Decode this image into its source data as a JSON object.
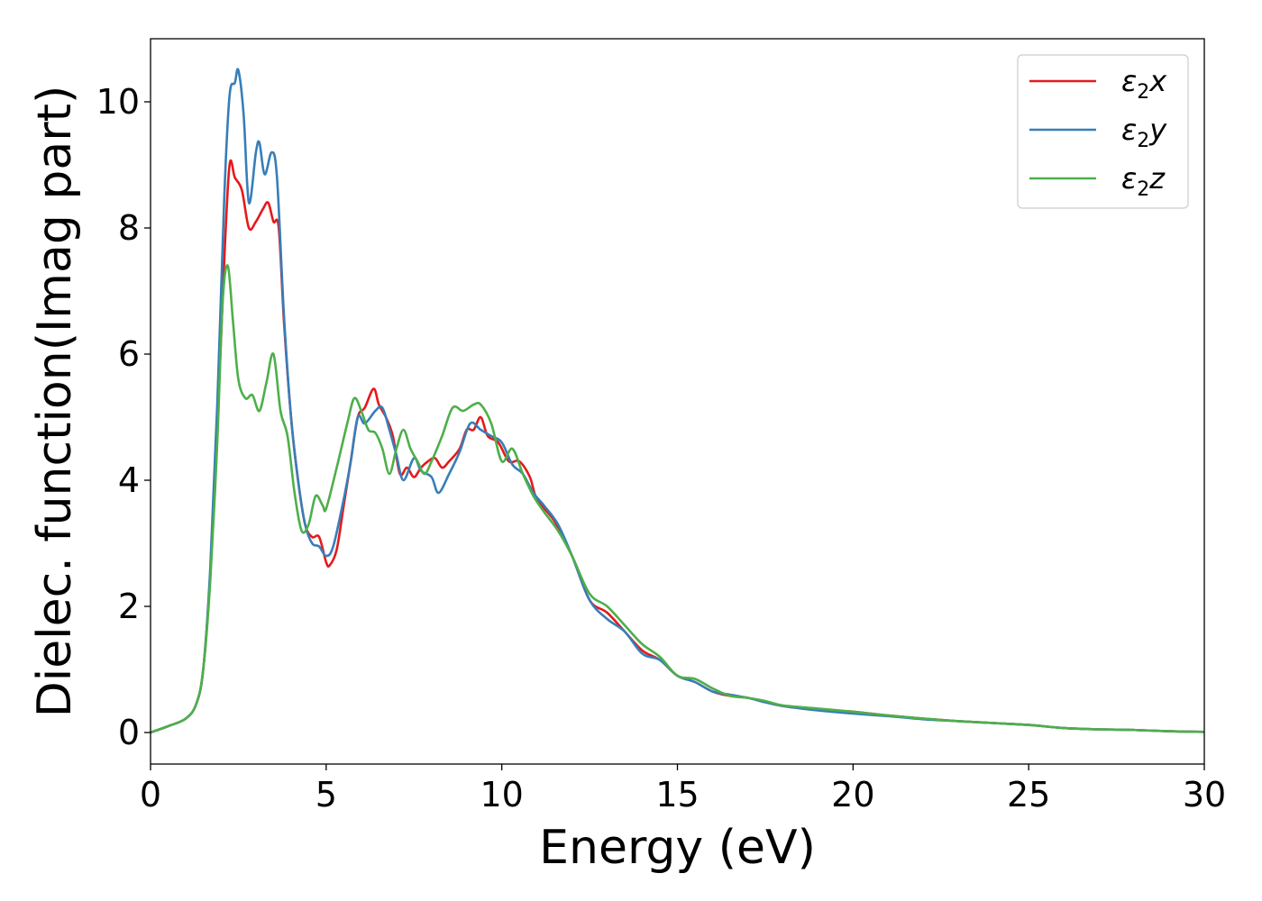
{
  "chart_data": {
    "type": "line",
    "xlabel": "Energy (eV)",
    "ylabel": "Dielec. function(Imag part)",
    "xlim": [
      0,
      30
    ],
    "ylim": [
      -0.5,
      11.0
    ],
    "xticks": [
      0,
      5,
      10,
      15,
      20,
      25,
      30
    ],
    "xtick_labels": [
      "0",
      "5",
      "10",
      "15",
      "20",
      "25",
      "30"
    ],
    "yticks": [
      0,
      2,
      4,
      6,
      8,
      10
    ],
    "ytick_labels": [
      "0",
      "2",
      "4",
      "6",
      "8",
      "10"
    ],
    "grid": false,
    "legend_position": "top-right",
    "series": [
      {
        "name": "ε₂x",
        "legend_base": "ε",
        "legend_sub": "2",
        "legend_var": "x",
        "color": "#e41a1c",
        "points": [
          [
            0,
            0
          ],
          [
            0.5,
            0.1
          ],
          [
            1.0,
            0.22
          ],
          [
            1.3,
            0.45
          ],
          [
            1.5,
            1.0
          ],
          [
            1.7,
            2.5
          ],
          [
            1.9,
            4.8
          ],
          [
            2.1,
            7.5
          ],
          [
            2.25,
            9.0
          ],
          [
            2.4,
            8.8
          ],
          [
            2.6,
            8.6
          ],
          [
            2.8,
            8.0
          ],
          [
            3.0,
            8.1
          ],
          [
            3.2,
            8.3
          ],
          [
            3.35,
            8.4
          ],
          [
            3.5,
            8.1
          ],
          [
            3.65,
            8.0
          ],
          [
            3.8,
            6.5
          ],
          [
            4.0,
            5.0
          ],
          [
            4.2,
            4.0
          ],
          [
            4.4,
            3.3
          ],
          [
            4.6,
            3.1
          ],
          [
            4.8,
            3.1
          ],
          [
            5.0,
            2.7
          ],
          [
            5.1,
            2.65
          ],
          [
            5.3,
            2.9
          ],
          [
            5.5,
            3.6
          ],
          [
            5.7,
            4.3
          ],
          [
            5.9,
            5.0
          ],
          [
            6.1,
            5.15
          ],
          [
            6.35,
            5.45
          ],
          [
            6.5,
            5.2
          ],
          [
            6.7,
            5.0
          ],
          [
            6.9,
            4.7
          ],
          [
            7.1,
            4.1
          ],
          [
            7.3,
            4.2
          ],
          [
            7.5,
            4.05
          ],
          [
            7.7,
            4.2
          ],
          [
            7.9,
            4.3
          ],
          [
            8.1,
            4.35
          ],
          [
            8.3,
            4.2
          ],
          [
            8.5,
            4.3
          ],
          [
            8.8,
            4.5
          ],
          [
            9.0,
            4.8
          ],
          [
            9.2,
            4.8
          ],
          [
            9.4,
            5.0
          ],
          [
            9.6,
            4.7
          ],
          [
            9.9,
            4.6
          ],
          [
            10.2,
            4.3
          ],
          [
            10.5,
            4.3
          ],
          [
            10.8,
            4.05
          ],
          [
            11.0,
            3.7
          ],
          [
            11.5,
            3.35
          ],
          [
            12.0,
            2.8
          ],
          [
            12.5,
            2.1
          ],
          [
            13.0,
            1.9
          ],
          [
            13.5,
            1.6
          ],
          [
            14.0,
            1.3
          ],
          [
            14.5,
            1.15
          ],
          [
            15.0,
            0.9
          ],
          [
            15.5,
            0.8
          ],
          [
            16.0,
            0.65
          ],
          [
            16.5,
            0.58
          ],
          [
            17.0,
            0.55
          ],
          [
            17.5,
            0.48
          ],
          [
            18.0,
            0.42
          ],
          [
            18.5,
            0.4
          ],
          [
            19.0,
            0.36
          ],
          [
            20.0,
            0.33
          ],
          [
            21.0,
            0.27
          ],
          [
            22.0,
            0.22
          ],
          [
            23.0,
            0.18
          ],
          [
            24.0,
            0.15
          ],
          [
            25.0,
            0.12
          ],
          [
            26.0,
            0.07
          ],
          [
            27.0,
            0.05
          ],
          [
            28.0,
            0.04
          ],
          [
            29.0,
            0.02
          ],
          [
            30.0,
            0.01
          ]
        ]
      },
      {
        "name": "ε₂y",
        "legend_base": "ε",
        "legend_sub": "2",
        "legend_var": "y",
        "color": "#377eb8",
        "points": [
          [
            0,
            0
          ],
          [
            0.5,
            0.1
          ],
          [
            1.0,
            0.22
          ],
          [
            1.3,
            0.45
          ],
          [
            1.5,
            1.0
          ],
          [
            1.7,
            2.6
          ],
          [
            1.9,
            5.2
          ],
          [
            2.1,
            8.5
          ],
          [
            2.25,
            10.1
          ],
          [
            2.4,
            10.3
          ],
          [
            2.5,
            10.5
          ],
          [
            2.65,
            9.8
          ],
          [
            2.8,
            8.4
          ],
          [
            3.0,
            9.2
          ],
          [
            3.1,
            9.35
          ],
          [
            3.25,
            8.85
          ],
          [
            3.45,
            9.2
          ],
          [
            3.6,
            8.8
          ],
          [
            3.8,
            6.6
          ],
          [
            4.0,
            5.0
          ],
          [
            4.2,
            4.0
          ],
          [
            4.4,
            3.3
          ],
          [
            4.6,
            3.0
          ],
          [
            4.8,
            2.95
          ],
          [
            5.0,
            2.8
          ],
          [
            5.2,
            2.95
          ],
          [
            5.5,
            3.7
          ],
          [
            5.7,
            4.3
          ],
          [
            5.9,
            5.0
          ],
          [
            6.1,
            4.9
          ],
          [
            6.4,
            5.1
          ],
          [
            6.6,
            5.15
          ],
          [
            6.8,
            4.8
          ],
          [
            7.0,
            4.4
          ],
          [
            7.2,
            4.0
          ],
          [
            7.5,
            4.35
          ],
          [
            7.7,
            4.15
          ],
          [
            8.0,
            4.05
          ],
          [
            8.2,
            3.8
          ],
          [
            8.5,
            4.1
          ],
          [
            8.8,
            4.45
          ],
          [
            9.1,
            4.9
          ],
          [
            9.4,
            4.8
          ],
          [
            9.7,
            4.7
          ],
          [
            10.0,
            4.6
          ],
          [
            10.3,
            4.25
          ],
          [
            10.6,
            4.1
          ],
          [
            10.9,
            3.8
          ],
          [
            11.2,
            3.6
          ],
          [
            11.6,
            3.3
          ],
          [
            12.0,
            2.8
          ],
          [
            12.5,
            2.1
          ],
          [
            13.0,
            1.8
          ],
          [
            13.5,
            1.6
          ],
          [
            14.0,
            1.25
          ],
          [
            14.5,
            1.15
          ],
          [
            15.0,
            0.9
          ],
          [
            15.5,
            0.8
          ],
          [
            16.0,
            0.65
          ],
          [
            16.5,
            0.6
          ],
          [
            17.0,
            0.55
          ],
          [
            17.5,
            0.48
          ],
          [
            18.0,
            0.42
          ],
          [
            19.0,
            0.35
          ],
          [
            20.0,
            0.3
          ],
          [
            21.0,
            0.26
          ],
          [
            22.0,
            0.21
          ],
          [
            23.0,
            0.18
          ],
          [
            24.0,
            0.15
          ],
          [
            25.0,
            0.12
          ],
          [
            26.0,
            0.07
          ],
          [
            27.0,
            0.05
          ],
          [
            28.0,
            0.04
          ],
          [
            29.0,
            0.02
          ],
          [
            30.0,
            0.01
          ]
        ]
      },
      {
        "name": "ε₂z",
        "legend_base": "ε",
        "legend_sub": "2",
        "legend_var": "z",
        "color": "#4daf4a",
        "points": [
          [
            0,
            0
          ],
          [
            0.5,
            0.1
          ],
          [
            1.0,
            0.22
          ],
          [
            1.3,
            0.45
          ],
          [
            1.5,
            1.0
          ],
          [
            1.7,
            2.4
          ],
          [
            1.9,
            4.6
          ],
          [
            2.05,
            6.8
          ],
          [
            2.2,
            7.4
          ],
          [
            2.35,
            6.5
          ],
          [
            2.5,
            5.6
          ],
          [
            2.7,
            5.3
          ],
          [
            2.9,
            5.35
          ],
          [
            3.1,
            5.1
          ],
          [
            3.3,
            5.55
          ],
          [
            3.5,
            6.0
          ],
          [
            3.7,
            5.1
          ],
          [
            3.9,
            4.7
          ],
          [
            4.1,
            3.8
          ],
          [
            4.3,
            3.2
          ],
          [
            4.5,
            3.3
          ],
          [
            4.7,
            3.75
          ],
          [
            4.9,
            3.6
          ],
          [
            5.0,
            3.55
          ],
          [
            5.3,
            4.2
          ],
          [
            5.6,
            4.9
          ],
          [
            5.8,
            5.3
          ],
          [
            6.0,
            5.1
          ],
          [
            6.2,
            4.8
          ],
          [
            6.4,
            4.75
          ],
          [
            6.6,
            4.5
          ],
          [
            6.8,
            4.1
          ],
          [
            7.0,
            4.5
          ],
          [
            7.2,
            4.8
          ],
          [
            7.4,
            4.5
          ],
          [
            7.6,
            4.3
          ],
          [
            7.8,
            4.1
          ],
          [
            8.0,
            4.3
          ],
          [
            8.3,
            4.7
          ],
          [
            8.6,
            5.15
          ],
          [
            8.9,
            5.1
          ],
          [
            9.2,
            5.2
          ],
          [
            9.4,
            5.2
          ],
          [
            9.7,
            4.9
          ],
          [
            10.0,
            4.3
          ],
          [
            10.3,
            4.5
          ],
          [
            10.6,
            4.1
          ],
          [
            10.9,
            3.75
          ],
          [
            11.2,
            3.5
          ],
          [
            11.6,
            3.2
          ],
          [
            12.0,
            2.8
          ],
          [
            12.5,
            2.2
          ],
          [
            13.0,
            2.0
          ],
          [
            13.5,
            1.7
          ],
          [
            14.0,
            1.4
          ],
          [
            14.5,
            1.2
          ],
          [
            15.0,
            0.9
          ],
          [
            15.5,
            0.85
          ],
          [
            16.0,
            0.7
          ],
          [
            16.5,
            0.58
          ],
          [
            17.0,
            0.55
          ],
          [
            17.5,
            0.5
          ],
          [
            18.0,
            0.43
          ],
          [
            19.0,
            0.38
          ],
          [
            20.0,
            0.33
          ],
          [
            21.0,
            0.27
          ],
          [
            22.0,
            0.22
          ],
          [
            23.0,
            0.18
          ],
          [
            24.0,
            0.15
          ],
          [
            25.0,
            0.12
          ],
          [
            26.0,
            0.07
          ],
          [
            27.0,
            0.05
          ],
          [
            28.0,
            0.04
          ],
          [
            29.0,
            0.02
          ],
          [
            30.0,
            0.01
          ]
        ]
      }
    ]
  }
}
